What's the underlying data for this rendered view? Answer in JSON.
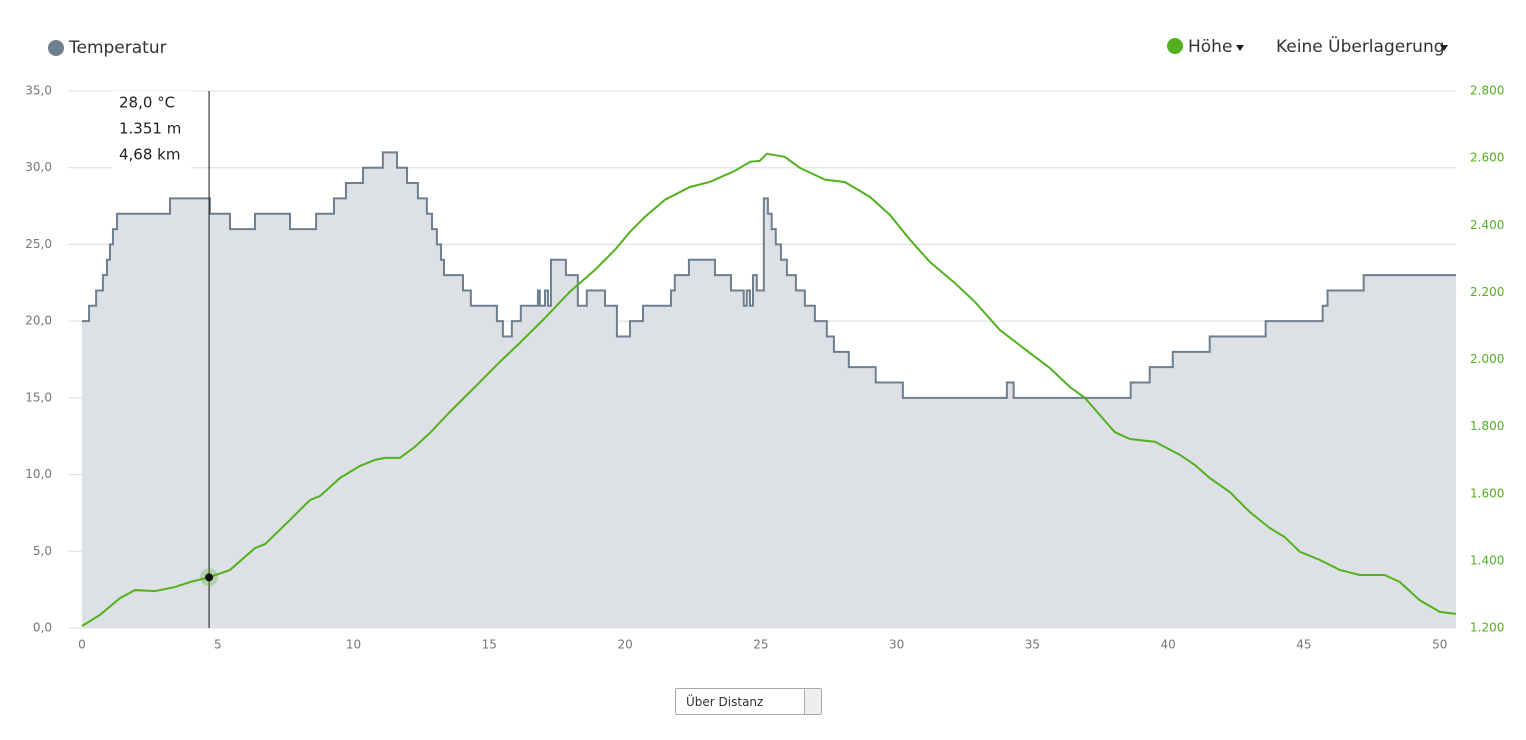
{
  "chart_data": {
    "type": "step-area-line",
    "xlim": [
      0,
      50.6
    ],
    "xticks": [
      0,
      5,
      10,
      15,
      20,
      25,
      30,
      35,
      40,
      45,
      50
    ],
    "ylim": [
      0,
      35
    ],
    "yticks": [
      {
        "value": 0,
        "label": "0,0"
      },
      {
        "value": 5,
        "label": "5,0"
      },
      {
        "value": 10,
        "label": "10,0"
      },
      {
        "value": 15,
        "label": "15,0"
      },
      {
        "value": 20,
        "label": "20,0"
      },
      {
        "value": 25,
        "label": "25,0"
      },
      {
        "value": 30,
        "label": "30,0"
      },
      {
        "value": 35,
        "label": "35,0"
      }
    ],
    "y2lim": [
      1200,
      2800
    ],
    "y2ticks": [
      {
        "value": 1200,
        "label": "1.200"
      },
      {
        "value": 1400,
        "label": "1.400"
      },
      {
        "value": 1600,
        "label": "1.600"
      },
      {
        "value": 1800,
        "label": "1.800"
      },
      {
        "value": 2000,
        "label": "2.000"
      },
      {
        "value": 2200,
        "label": "2.200"
      },
      {
        "value": 2400,
        "label": "2.400"
      },
      {
        "value": 2600,
        "label": "2.600"
      },
      {
        "value": 2800,
        "label": "2.800"
      }
    ],
    "grid": true,
    "series": [
      {
        "name": "Temperatur",
        "color": "#6e7f8f",
        "fill": "#dde1e5",
        "x": [
          0,
          0.26,
          0.52,
          0.77,
          0.92,
          1.03,
          1.14,
          1.29,
          3.24,
          4.71,
          5.45,
          6.37,
          7.66,
          8.62,
          9.28,
          9.72,
          10.35,
          11.08,
          11.6,
          11.97,
          12.37,
          12.7,
          12.89,
          13.07,
          13.22,
          13.33,
          14.03,
          14.32,
          15.28,
          15.5,
          15.83,
          16.16,
          16.79,
          16.86,
          17.05,
          17.16,
          17.27,
          17.82,
          18.26,
          18.59,
          19.26,
          19.7,
          20.18,
          20.66,
          21.69,
          21.83,
          22.35,
          23.31,
          23.9,
          24.37,
          24.48,
          24.6,
          24.71,
          24.85,
          25.11,
          25.26,
          25.4,
          25.55,
          25.74,
          25.96,
          26.29,
          26.62,
          26.99,
          27.43,
          27.69,
          28.24,
          29.23,
          30.23,
          34.06,
          34.31,
          38.62,
          39.32,
          40.17,
          41.53,
          43.59,
          45.69,
          45.87,
          47.2,
          50.6
        ],
        "values": [
          20,
          21,
          22,
          23,
          24,
          25,
          26,
          27,
          28,
          27,
          26,
          27,
          26,
          27,
          28,
          29,
          30,
          31,
          30,
          29,
          28,
          27,
          26,
          25,
          24,
          23,
          22,
          21,
          20,
          19,
          20,
          21,
          22,
          21,
          22,
          21,
          24,
          23,
          21,
          22,
          21,
          19,
          20,
          21,
          22,
          23,
          24,
          23,
          22,
          21,
          22,
          21,
          23,
          22,
          28,
          27,
          26,
          25,
          24,
          23,
          22,
          21,
          20,
          19,
          18,
          17,
          16,
          15,
          16,
          15,
          16,
          17,
          18,
          19,
          20,
          21,
          22,
          23,
          23
        ]
      },
      {
        "name": "Höhe",
        "color": "#52b11e",
        "axis": "y2",
        "x": [
          0,
          0.66,
          1.4,
          1.95,
          2.69,
          3.42,
          3.98,
          4.68,
          5.45,
          6.37,
          6.74,
          7.66,
          8.39,
          8.76,
          9.5,
          10.24,
          10.79,
          11.16,
          11.71,
          12.26,
          12.81,
          13.55,
          14.47,
          15.39,
          16.13,
          17.05,
          17.97,
          18.89,
          19.63,
          20.18,
          20.73,
          21.47,
          22.39,
          23.12,
          24.04,
          24.6,
          24.96,
          25.22,
          25.88,
          26.44,
          27.36,
          28.09,
          29.01,
          29.75,
          30.49,
          31.22,
          32.14,
          32.88,
          33.8,
          34.9,
          35.64,
          36.38,
          36.93,
          37.48,
          38.03,
          38.59,
          39.51,
          40.43,
          40.98,
          41.53,
          42.27,
          43.0,
          43.74,
          44.29,
          44.85,
          45.58,
          46.32,
          47.05,
          47.97,
          48.53,
          49.26,
          50.0,
          50.6
        ],
        "values": [
          1206,
          1239,
          1289,
          1313,
          1310,
          1322,
          1337,
          1351,
          1373,
          1438,
          1450,
          1522,
          1581,
          1593,
          1647,
          1683,
          1701,
          1707,
          1707,
          1740,
          1781,
          1844,
          1918,
          1993,
          2050,
          2124,
          2202,
          2267,
          2327,
          2380,
          2425,
          2476,
          2514,
          2529,
          2562,
          2589,
          2592,
          2613,
          2604,
          2571,
          2536,
          2529,
          2485,
          2431,
          2357,
          2291,
          2228,
          2172,
          2088,
          2020,
          1975,
          1918,
          1886,
          1835,
          1784,
          1763,
          1755,
          1716,
          1686,
          1647,
          1605,
          1546,
          1498,
          1471,
          1427,
          1403,
          1373,
          1358,
          1358,
          1337,
          1283,
          1248,
          1242
        ]
      }
    ],
    "tooltip": {
      "x": 4.68,
      "y2": 1351,
      "labels": [
        "28,0 °C",
        "1.351 m",
        "4,68 km"
      ]
    },
    "overlay_menu": "Keine Überlagerung",
    "axis_mode": "Über Distanz"
  }
}
